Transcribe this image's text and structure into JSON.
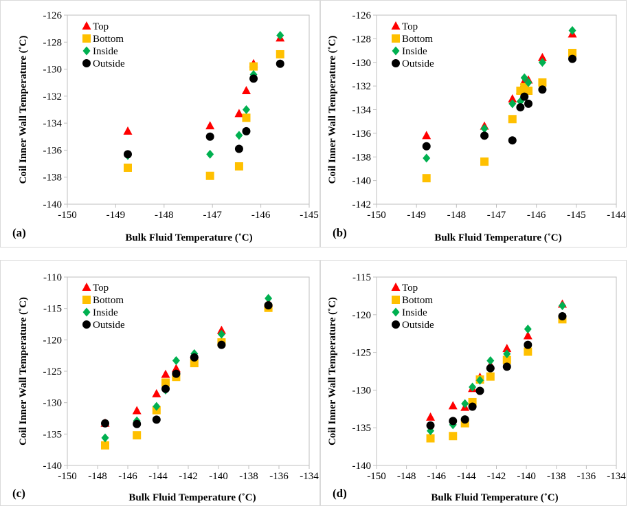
{
  "chart_data": [
    {
      "type": "scatter",
      "panel_label": "(a)",
      "xlabel": "Bulk Fluid Temperature (˚C)",
      "ylabel": "Coil Inner Wall Temperature (˚C)",
      "xlim": [
        -150,
        -145
      ],
      "ylim": [
        -140,
        -126
      ],
      "xticks": [
        -150,
        -149,
        -148,
        -147,
        -146,
        -145
      ],
      "yticks": [
        -140,
        -138,
        -136,
        -134,
        -132,
        -130,
        -128,
        -126
      ],
      "grid": false,
      "legend_position": "top-left",
      "series": [
        {
          "name": "Top",
          "marker": "triangle",
          "color": "#ff0000",
          "x": [
            -148.75,
            -147.05,
            -146.45,
            -146.3,
            -146.15,
            -145.6
          ],
          "y": [
            -134.6,
            -134.2,
            -133.3,
            -131.6,
            -129.6,
            -127.7
          ]
        },
        {
          "name": "Bottom",
          "marker": "square",
          "color": "#ffc000",
          "x": [
            -148.75,
            -147.05,
            -146.45,
            -146.3,
            -146.15,
            -145.6
          ],
          "y": [
            -137.3,
            -137.9,
            -137.2,
            -133.6,
            -129.8,
            -128.9
          ]
        },
        {
          "name": "Inside",
          "marker": "diamond",
          "color": "#00b050",
          "x": [
            -148.75,
            -147.05,
            -146.45,
            -146.3,
            -146.15,
            -145.6
          ],
          "y": [
            -136.4,
            -136.3,
            -134.9,
            -133.0,
            -130.4,
            -127.5
          ]
        },
        {
          "name": "Outside",
          "marker": "circle",
          "color": "#000000",
          "x": [
            -148.75,
            -147.05,
            -146.45,
            -146.3,
            -146.15,
            -145.6
          ],
          "y": [
            -136.3,
            -135.0,
            -135.9,
            -134.6,
            -130.7,
            -129.6
          ]
        }
      ]
    },
    {
      "type": "scatter",
      "panel_label": "(b)",
      "xlabel": "Bulk Fluid Temperature (˚C)",
      "ylabel": "Coil Inner Wall Temperature (˚C)",
      "xlim": [
        -150,
        -144
      ],
      "ylim": [
        -142,
        -126
      ],
      "xticks": [
        -150,
        -149,
        -148,
        -147,
        -146,
        -145,
        -144
      ],
      "yticks": [
        -142,
        -140,
        -138,
        -136,
        -134,
        -132,
        -130,
        -128,
        -126
      ],
      "grid": false,
      "legend_position": "top-left",
      "series": [
        {
          "name": "Top",
          "marker": "triangle",
          "color": "#ff0000",
          "x": [
            -148.75,
            -147.3,
            -146.6,
            -146.4,
            -146.3,
            -146.2,
            -145.85,
            -145.1
          ],
          "y": [
            -136.2,
            -135.4,
            -133.1,
            -132.4,
            -131.6,
            -131.5,
            -129.6,
            -127.6
          ]
        },
        {
          "name": "Bottom",
          "marker": "square",
          "color": "#ffc000",
          "x": [
            -148.75,
            -147.3,
            -146.6,
            -146.4,
            -146.3,
            -146.2,
            -145.85,
            -145.1
          ],
          "y": [
            -139.8,
            -138.4,
            -134.8,
            -132.4,
            -132.1,
            -132.4,
            -131.7,
            -129.2
          ]
        },
        {
          "name": "Inside",
          "marker": "diamond",
          "color": "#00b050",
          "x": [
            -148.75,
            -147.3,
            -146.6,
            -146.4,
            -146.3,
            -146.2,
            -145.85,
            -145.1
          ],
          "y": [
            -138.1,
            -135.6,
            -133.5,
            -133.3,
            -131.3,
            -131.7,
            -130.0,
            -127.3
          ]
        },
        {
          "name": "Outside",
          "marker": "circle",
          "color": "#000000",
          "x": [
            -148.75,
            -147.3,
            -146.6,
            -146.4,
            -146.3,
            -146.2,
            -145.85,
            -145.1
          ],
          "y": [
            -137.1,
            -136.2,
            -136.6,
            -133.8,
            -132.9,
            -133.5,
            -132.3,
            -129.7
          ]
        }
      ]
    },
    {
      "type": "scatter",
      "panel_label": "(c)",
      "xlabel": "Bulk Fluid Temperature (˚C)",
      "ylabel": "Coil Inner Wall Temperature (˚C)",
      "xlim": [
        -150,
        -134
      ],
      "ylim": [
        -140,
        -110
      ],
      "xticks": [
        -150,
        -148,
        -146,
        -144,
        -142,
        -140,
        -138,
        -136,
        -134
      ],
      "yticks": [
        -140,
        -135,
        -130,
        -125,
        -120,
        -115,
        -110
      ],
      "grid": false,
      "legend_position": "top-left",
      "series": [
        {
          "name": "Top",
          "marker": "triangle",
          "color": "#ff0000",
          "x": [
            -147.5,
            -145.4,
            -144.1,
            -143.5,
            -142.8,
            -141.6,
            -139.8,
            -136.7
          ],
          "y": [
            -133.3,
            -131.3,
            -128.6,
            -125.5,
            -124.6,
            -122.3,
            -118.5,
            -114.1
          ]
        },
        {
          "name": "Bottom",
          "marker": "square",
          "color": "#ffc000",
          "x": [
            -147.5,
            -145.4,
            -144.1,
            -143.5,
            -142.8,
            -141.6,
            -139.8,
            -136.7
          ],
          "y": [
            -136.8,
            -135.2,
            -131.2,
            -126.8,
            -125.9,
            -123.7,
            -120.4,
            -114.9
          ]
        },
        {
          "name": "Inside",
          "marker": "diamond",
          "color": "#00b050",
          "x": [
            -147.5,
            -145.4,
            -144.1,
            -143.5,
            -142.8,
            -141.6,
            -139.8,
            -136.7
          ],
          "y": [
            -135.6,
            -132.9,
            -130.6,
            -128.0,
            -123.3,
            -122.2,
            -119.1,
            -113.4
          ]
        },
        {
          "name": "Outside",
          "marker": "circle",
          "color": "#000000",
          "x": [
            -147.5,
            -145.4,
            -144.1,
            -143.5,
            -142.8,
            -141.6,
            -139.8,
            -136.7
          ],
          "y": [
            -133.3,
            -133.4,
            -132.7,
            -127.8,
            -125.4,
            -122.8,
            -120.8,
            -114.5
          ]
        }
      ]
    },
    {
      "type": "scatter",
      "panel_label": "(d)",
      "xlabel": "Bulk Fluid Temperature (˚C)",
      "ylabel": "Coil Inner Wall Temperature (˚C)",
      "xlim": [
        -150,
        -134
      ],
      "ylim": [
        -140,
        -115
      ],
      "xticks": [
        -150,
        -148,
        -146,
        -144,
        -142,
        -140,
        -138,
        -136,
        -134
      ],
      "yticks": [
        -140,
        -135,
        -130,
        -125,
        -120,
        -115
      ],
      "grid": false,
      "legend_position": "top-left",
      "series": [
        {
          "name": "Top",
          "marker": "triangle",
          "color": "#ff0000",
          "x": [
            -146.4,
            -144.9,
            -144.1,
            -143.6,
            -143.1,
            -142.4,
            -141.3,
            -139.9,
            -137.6
          ],
          "y": [
            -133.6,
            -132.1,
            -132.3,
            -129.8,
            -128.3,
            -126.7,
            -124.5,
            -122.8,
            -118.6
          ]
        },
        {
          "name": "Bottom",
          "marker": "square",
          "color": "#ffc000",
          "x": [
            -146.4,
            -144.9,
            -144.1,
            -143.6,
            -143.1,
            -142.4,
            -141.3,
            -139.9,
            -137.6
          ],
          "y": [
            -136.4,
            -136.1,
            -134.4,
            -131.6,
            -128.6,
            -128.2,
            -126.0,
            -124.9,
            -120.6
          ]
        },
        {
          "name": "Inside",
          "marker": "diamond",
          "color": "#00b050",
          "x": [
            -146.4,
            -144.9,
            -144.1,
            -143.6,
            -143.1,
            -142.4,
            -141.3,
            -139.9,
            -137.6
          ],
          "y": [
            -135.4,
            -134.6,
            -131.8,
            -129.6,
            -128.7,
            -126.1,
            -125.2,
            -121.9,
            -118.8
          ]
        },
        {
          "name": "Outside",
          "marker": "circle",
          "color": "#000000",
          "x": [
            -146.4,
            -144.9,
            -144.1,
            -143.6,
            -143.1,
            -142.4,
            -141.3,
            -139.9,
            -137.6
          ],
          "y": [
            -134.7,
            -134.1,
            -133.9,
            -132.2,
            -130.1,
            -127.1,
            -126.9,
            -124.0,
            -120.2
          ]
        }
      ]
    }
  ]
}
